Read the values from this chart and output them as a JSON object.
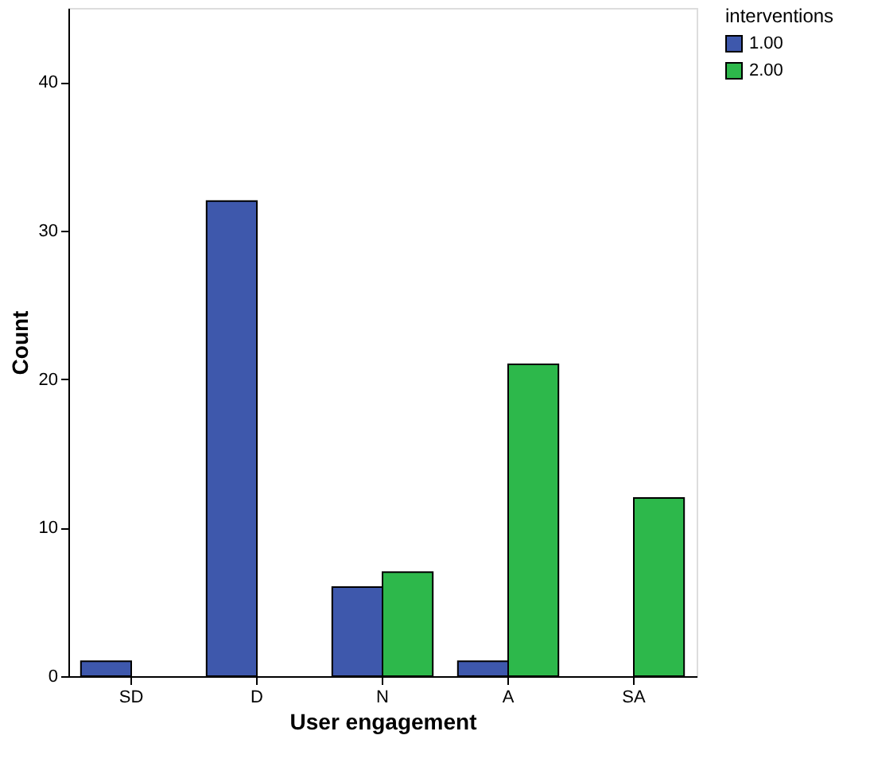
{
  "chart_data": {
    "type": "bar",
    "xlabel": "User engagement",
    "ylabel": "Count",
    "legend_title": "interventions",
    "categories": [
      "SD",
      "D",
      "N",
      "A",
      "SA"
    ],
    "series": [
      {
        "name": "1.00",
        "color": "#3e58ac",
        "values": [
          1,
          32,
          6,
          1,
          null
        ]
      },
      {
        "name": "2.00",
        "color": "#2db84b",
        "values": [
          null,
          null,
          7,
          21,
          12
        ]
      }
    ],
    "ylim": [
      0,
      45
    ],
    "yticks": [
      0,
      10,
      20,
      30,
      40
    ],
    "grid": false,
    "legend": "top right"
  }
}
